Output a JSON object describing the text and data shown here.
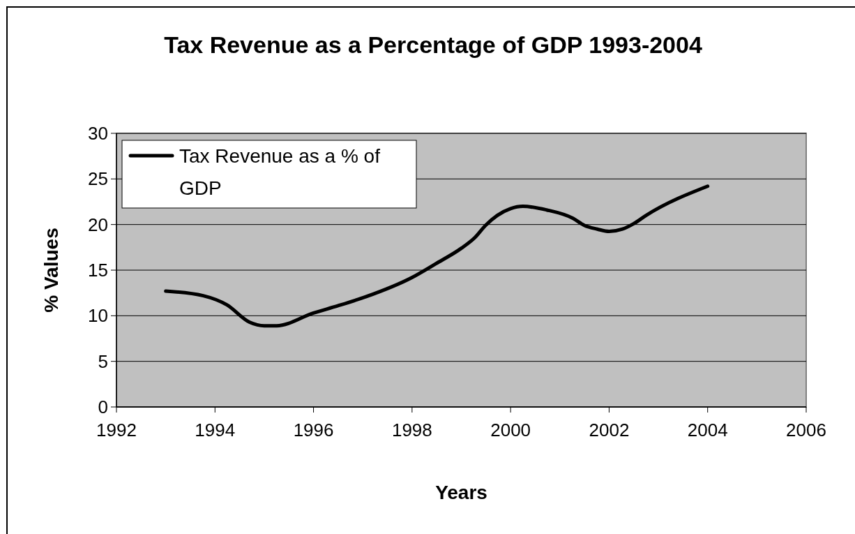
{
  "chart_data": {
    "type": "line",
    "title": "Tax Revenue as a Percentage of GDP 1993-2004",
    "xlabel": "Years",
    "ylabel": "% Values",
    "x": [
      1993.0,
      1993.76,
      1994.24,
      1994.7,
      1995.0,
      1995.25,
      1996.0,
      1996.5,
      1997.07,
      1998.0,
      1998.48,
      1999.0,
      1999.28,
      1999.49,
      1999.73,
      2000.0,
      2000.25,
      2000.73,
      2001.26,
      2001.5,
      2001.76,
      2002.0,
      2002.27,
      2002.5,
      2002.75,
      2004.0
    ],
    "series": [
      {
        "name": "Tax Revenue as a % of GDP",
        "color": "#000000",
        "values": [
          12.7,
          12.2,
          11.2,
          9.3,
          8.9,
          8.9,
          10.3,
          11.1,
          12.1,
          14.2,
          15.7,
          17.4,
          18.6,
          19.9,
          21.0,
          21.75,
          22.0,
          21.6,
          20.7,
          19.9,
          19.5,
          19.25,
          19.5,
          20.1,
          21.0,
          24.2
        ]
      }
    ],
    "xlim": [
      1992,
      2006
    ],
    "xticks": [
      1992,
      1994,
      1996,
      1998,
      2000,
      2002,
      2004,
      2006
    ],
    "ylim": [
      0,
      30
    ],
    "yticks": [
      0,
      5,
      10,
      15,
      20,
      25,
      30
    ],
    "grid": "y",
    "legend": "top left",
    "marker": "none",
    "line_style": "solid"
  }
}
